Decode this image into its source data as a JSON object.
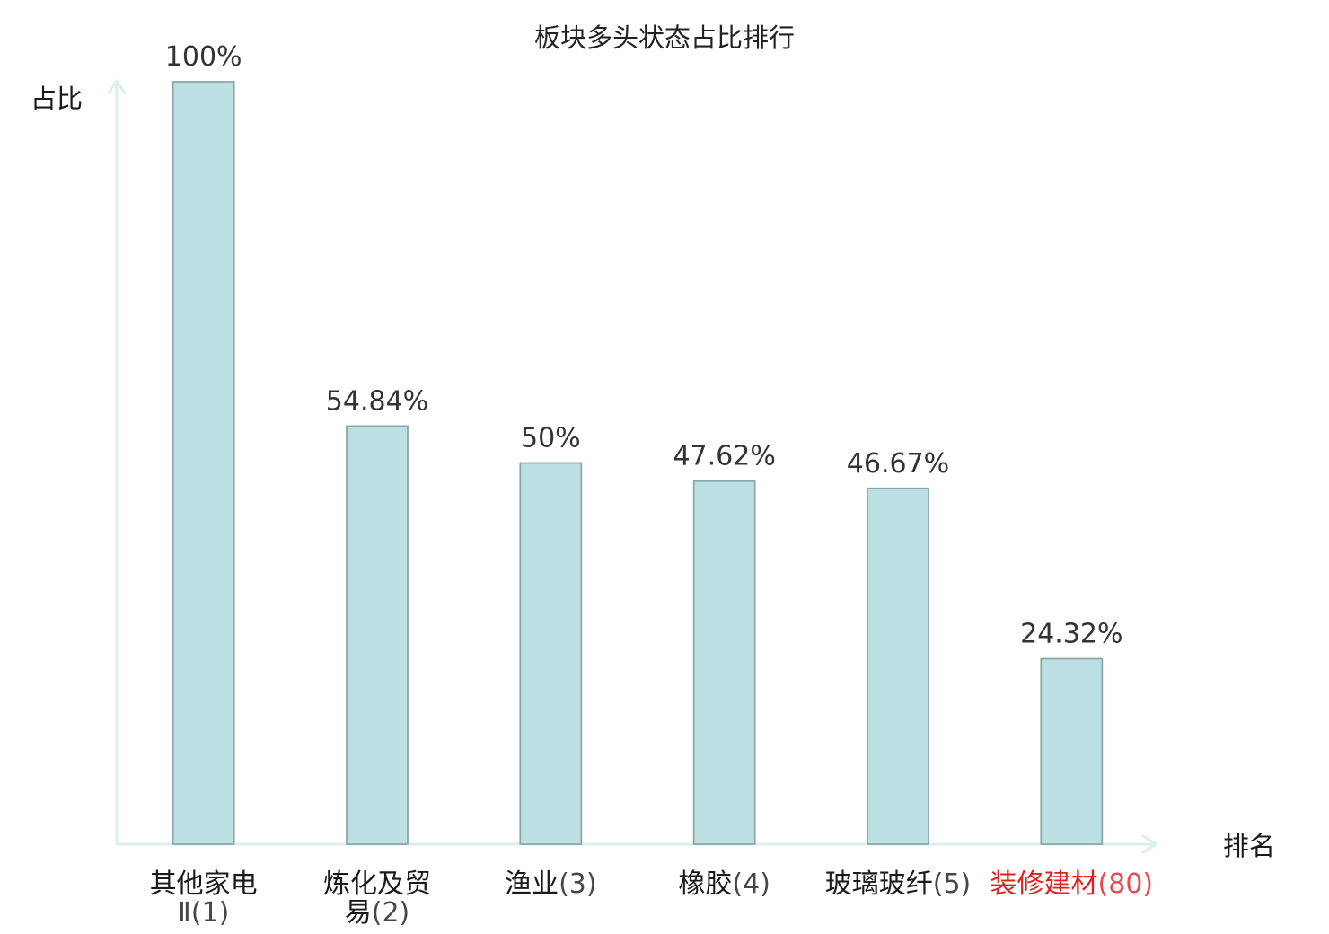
{
  "chart_data": {
    "type": "bar",
    "title": "板块多头状态占比排行",
    "xlabel": "排名",
    "ylabel": "占比",
    "categories": [
      "其他家电Ⅱ(1)",
      "炼化及贸易(2)",
      "渔业(3)",
      "橡胶(4)",
      "玻璃玻纤(5)",
      "装修建材(80)"
    ],
    "values": [
      100,
      54.84,
      50,
      47.62,
      46.67,
      24.32
    ],
    "data_labels": [
      "100%",
      "54.84%",
      "50%",
      "47.62%",
      "46.67%",
      "24.32%"
    ],
    "ylim": [
      0,
      100
    ],
    "y_tick_labels": false,
    "grid": false,
    "legend": false,
    "colors": {
      "bar_fill": "#bde0e2",
      "bar_stroke": "#8ba8aa",
      "axis": "#dcefec"
    },
    "label_colors": [
      "#1a1a1a",
      "#1a1a1a",
      "#1a1a1a",
      "#1a1a1a",
      "#1a1a1a",
      "#e0201f"
    ]
  }
}
